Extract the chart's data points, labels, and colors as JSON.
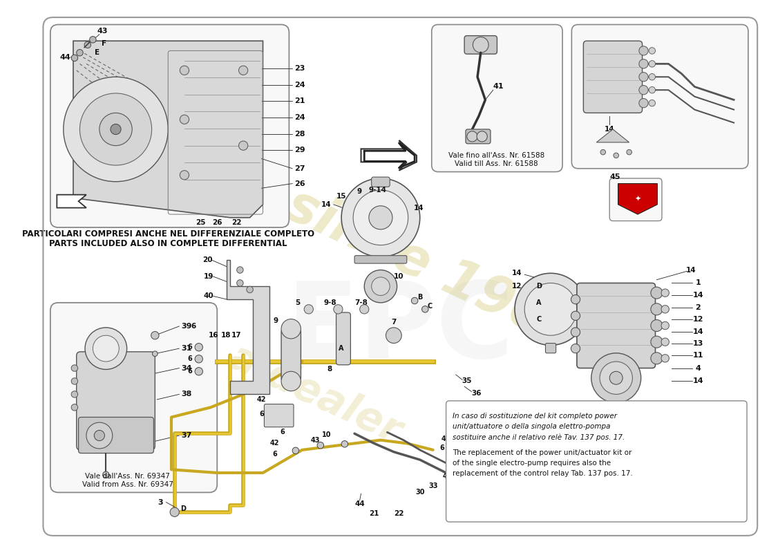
{
  "bg": "#ffffff",
  "border_ec": "#aaaaaa",
  "lc": "#222222",
  "fc_light": "#e8e8e8",
  "fc_mid": "#d0d0d0",
  "fc_dark": "#b8b8b8",
  "wm1": "since 1905",
  "wm2": "a dealer",
  "wm_color": "#c8b84a",
  "note_it1": "PARTICOLARI COMPRESI ANCHE NEL DIFFERENZIALE COMPLETO",
  "note_en1": "PARTS INCLUDED ALSO IN COMPLETE DIFFERENTIAL",
  "box1_it": "Vale dall'Ass. Nr. 69347",
  "box1_en": "Valid from Ass. Nr. 69347",
  "box2_it": "Vale fino all'Ass. Nr. 61588",
  "box2_en": "Valid till Ass. Nr. 61588",
  "txt_it": [
    "In caso di sostituzione del kit completo power",
    "unit/attuatore o della singola elettro-pompa",
    "sostituire anche il relativo relè Tav. 137 pos. 17."
  ],
  "txt_en": [
    "The replacement of the power unit/actuator kit or",
    "of the single electro-pump requires also the",
    "replacement of the control relay Tab. 137 pos. 17."
  ]
}
